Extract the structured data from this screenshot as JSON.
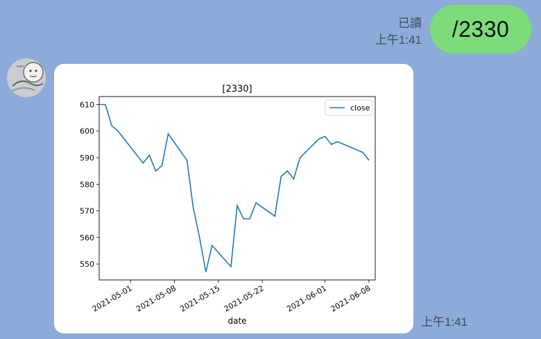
{
  "outgoing": {
    "read_label": "已讀",
    "time": "上午1:41",
    "text": "/2330"
  },
  "incoming": {
    "time": "上午1:41",
    "avatar_icon": "avatar-sketch-icon"
  },
  "chart_data": {
    "type": "line",
    "title": "[2330]",
    "xlabel": "date",
    "ylabel": "",
    "legend": {
      "placement": "top-right",
      "entries": [
        "close"
      ]
    },
    "grid": false,
    "line_color": "#1f77b4",
    "xlim": [
      "2021-04-26",
      "2021-06-09"
    ],
    "ylim": [
      544,
      613
    ],
    "xticks": [
      "2021-05-01",
      "2021-05-08",
      "2021-05-15",
      "2021-05-22",
      "2021-06-01",
      "2021-06-08"
    ],
    "yticks": [
      550,
      560,
      570,
      580,
      590,
      600,
      610
    ],
    "series": [
      {
        "name": "close",
        "x": [
          "2021-04-26",
          "2021-04-27",
          "2021-04-28",
          "2021-04-29",
          "2021-05-03",
          "2021-05-04",
          "2021-05-05",
          "2021-05-06",
          "2021-05-07",
          "2021-05-10",
          "2021-05-11",
          "2021-05-12",
          "2021-05-13",
          "2021-05-14",
          "2021-05-17",
          "2021-05-18",
          "2021-05-19",
          "2021-05-20",
          "2021-05-21",
          "2021-05-24",
          "2021-05-25",
          "2021-05-26",
          "2021-05-27",
          "2021-05-28",
          "2021-05-31",
          "2021-06-01",
          "2021-06-02",
          "2021-06-03",
          "2021-06-07",
          "2021-06-08"
        ],
        "y": [
          610,
          610,
          602,
          600,
          588,
          591,
          585,
          587,
          599,
          589,
          571,
          560,
          547,
          557,
          549,
          572,
          567,
          567,
          573,
          568,
          583,
          585,
          582,
          590,
          597,
          598,
          595,
          596,
          592,
          589
        ]
      }
    ]
  }
}
